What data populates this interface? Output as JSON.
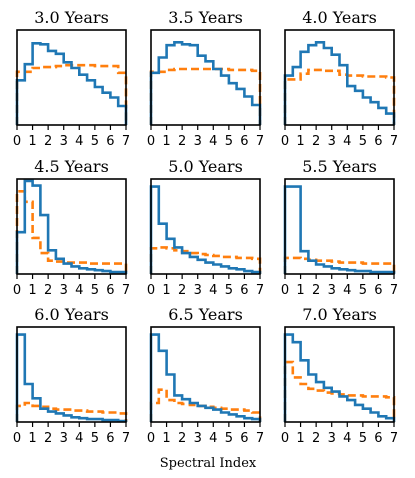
{
  "chart_data": {
    "type": "histogram-grid",
    "xlabel": "Spectral Index",
    "x_ticks": [
      0,
      1,
      2,
      3,
      4,
      5,
      6,
      7
    ],
    "bins": 14,
    "bin_width": 0.5,
    "x_range": [
      0,
      7
    ],
    "series_colors": {
      "solid": "#1f77b4",
      "dashed": "#ff7f0e"
    },
    "y_max": 1.0,
    "panels": [
      {
        "title": "3.0 Years",
        "solid": [
          0.47,
          0.64,
          0.86,
          0.85,
          0.78,
          0.75,
          0.66,
          0.6,
          0.53,
          0.47,
          0.4,
          0.34,
          0.29,
          0.2
        ],
        "dashed": [
          0.56,
          0.56,
          0.6,
          0.61,
          0.61,
          0.62,
          0.63,
          0.63,
          0.63,
          0.63,
          0.62,
          0.62,
          0.62,
          0.55
        ]
      },
      {
        "title": "3.5 Years",
        "solid": [
          0.55,
          0.71,
          0.84,
          0.87,
          0.85,
          0.84,
          0.73,
          0.67,
          0.59,
          0.52,
          0.44,
          0.38,
          0.3,
          0.21
        ],
        "dashed": [
          0.56,
          0.56,
          0.58,
          0.59,
          0.59,
          0.59,
          0.59,
          0.59,
          0.59,
          0.59,
          0.58,
          0.58,
          0.58,
          0.57
        ]
      },
      {
        "title": "4.0 Years",
        "solid": [
          0.52,
          0.61,
          0.77,
          0.84,
          0.87,
          0.81,
          0.74,
          0.63,
          0.41,
          0.36,
          0.29,
          0.24,
          0.18,
          0.12
        ],
        "dashed": [
          0.48,
          0.48,
          0.54,
          0.58,
          0.58,
          0.57,
          0.57,
          0.53,
          0.52,
          0.52,
          0.51,
          0.51,
          0.51,
          0.5
        ]
      },
      {
        "title": "4.5 Years",
        "solid": [
          0.44,
          0.98,
          0.93,
          0.62,
          0.25,
          0.16,
          0.11,
          0.08,
          0.06,
          0.05,
          0.04,
          0.03,
          0.02,
          0.02
        ],
        "dashed": [
          0.87,
          0.76,
          0.38,
          0.22,
          0.14,
          0.13,
          0.12,
          0.12,
          0.12,
          0.11,
          0.11,
          0.11,
          0.11,
          0.11
        ]
      },
      {
        "title": "5.0 Years",
        "solid": [
          0.92,
          0.53,
          0.37,
          0.28,
          0.22,
          0.18,
          0.15,
          0.12,
          0.1,
          0.08,
          0.06,
          0.05,
          0.03,
          0.02
        ],
        "dashed": [
          0.27,
          0.28,
          0.27,
          0.25,
          0.24,
          0.22,
          0.21,
          0.2,
          0.19,
          0.18,
          0.18,
          0.17,
          0.17,
          0.16
        ]
      },
      {
        "title": "5.5 Years",
        "solid": [
          0.92,
          0.92,
          0.24,
          0.14,
          0.1,
          0.08,
          0.06,
          0.05,
          0.04,
          0.03,
          0.03,
          0.02,
          0.02,
          0.02
        ],
        "dashed": [
          0.17,
          0.17,
          0.16,
          0.15,
          0.14,
          0.14,
          0.13,
          0.12,
          0.12,
          0.12,
          0.11,
          0.11,
          0.11,
          0.11
        ]
      },
      {
        "title": "6.0 Years",
        "solid": [
          0.92,
          0.4,
          0.25,
          0.14,
          0.11,
          0.09,
          0.07,
          0.05,
          0.04,
          0.03,
          0.03,
          0.02,
          0.02,
          0.01
        ],
        "dashed": [
          0.17,
          0.2,
          0.17,
          0.16,
          0.14,
          0.13,
          0.13,
          0.12,
          0.12,
          0.11,
          0.11,
          0.1,
          0.1,
          0.09
        ]
      },
      {
        "title": "6.5 Years",
        "solid": [
          0.92,
          0.75,
          0.5,
          0.28,
          0.24,
          0.2,
          0.17,
          0.15,
          0.13,
          0.1,
          0.08,
          0.06,
          0.04,
          0.03
        ],
        "dashed": [
          0.2,
          0.34,
          0.23,
          0.2,
          0.19,
          0.18,
          0.17,
          0.16,
          0.15,
          0.14,
          0.13,
          0.13,
          0.12,
          0.1
        ]
      },
      {
        "title": "7.0 Years",
        "solid": [
          0.92,
          0.84,
          0.65,
          0.5,
          0.42,
          0.36,
          0.32,
          0.27,
          0.23,
          0.18,
          0.14,
          0.1,
          0.06,
          0.04
        ],
        "dashed": [
          0.63,
          0.47,
          0.4,
          0.35,
          0.33,
          0.31,
          0.3,
          0.29,
          0.28,
          0.28,
          0.27,
          0.27,
          0.27,
          0.26
        ]
      }
    ]
  }
}
